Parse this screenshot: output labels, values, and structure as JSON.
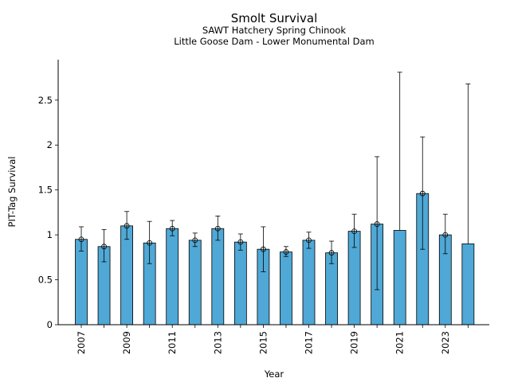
{
  "chart_data": {
    "type": "bar",
    "title": "Smolt Survival",
    "subtitle_lines": [
      "SAWT Hatchery Spring Chinook",
      "Little Goose Dam - Lower Monumental Dam"
    ],
    "xlabel": "Year",
    "ylabel": "PIT-Tag Survival",
    "ylim": [
      0,
      2.95
    ],
    "yticks": [
      0,
      0.5,
      1,
      1.5,
      2,
      2.5
    ],
    "ytick_labels": [
      "0",
      "0.5",
      "1",
      "1.5",
      "2",
      "2.5"
    ],
    "xtick_labels": [
      "2007",
      "2009",
      "2011",
      "2013",
      "2015",
      "2017",
      "2019",
      "2021",
      "2023"
    ],
    "categories": [
      "2007",
      "2008",
      "2009",
      "2010",
      "2011",
      "2012",
      "2013",
      "2014",
      "2015",
      "2016",
      "2017",
      "2018",
      "2019",
      "2020",
      "2021",
      "2022",
      "2023",
      "2024"
    ],
    "values": [
      0.95,
      0.87,
      1.1,
      0.91,
      1.07,
      0.94,
      1.07,
      0.92,
      0.84,
      0.81,
      0.94,
      0.8,
      1.04,
      1.12,
      1.05,
      1.46,
      1.0,
      0.9
    ],
    "error_lower": [
      0.82,
      0.7,
      0.95,
      0.68,
      0.99,
      0.87,
      0.94,
      0.83,
      0.59,
      0.76,
      0.85,
      0.68,
      0.86,
      0.39,
      null,
      0.84,
      0.79,
      null
    ],
    "error_upper": [
      1.09,
      1.06,
      1.26,
      1.15,
      1.16,
      1.02,
      1.21,
      1.01,
      1.09,
      0.87,
      1.03,
      0.93,
      1.23,
      1.87,
      2.81,
      2.09,
      1.23,
      2.68
    ],
    "markers": [
      true,
      true,
      true,
      true,
      true,
      true,
      true,
      true,
      true,
      true,
      true,
      true,
      true,
      true,
      false,
      true,
      true,
      false
    ],
    "bar_color": "#4fa8d5",
    "edge_color": "#000000",
    "grid": false
  }
}
